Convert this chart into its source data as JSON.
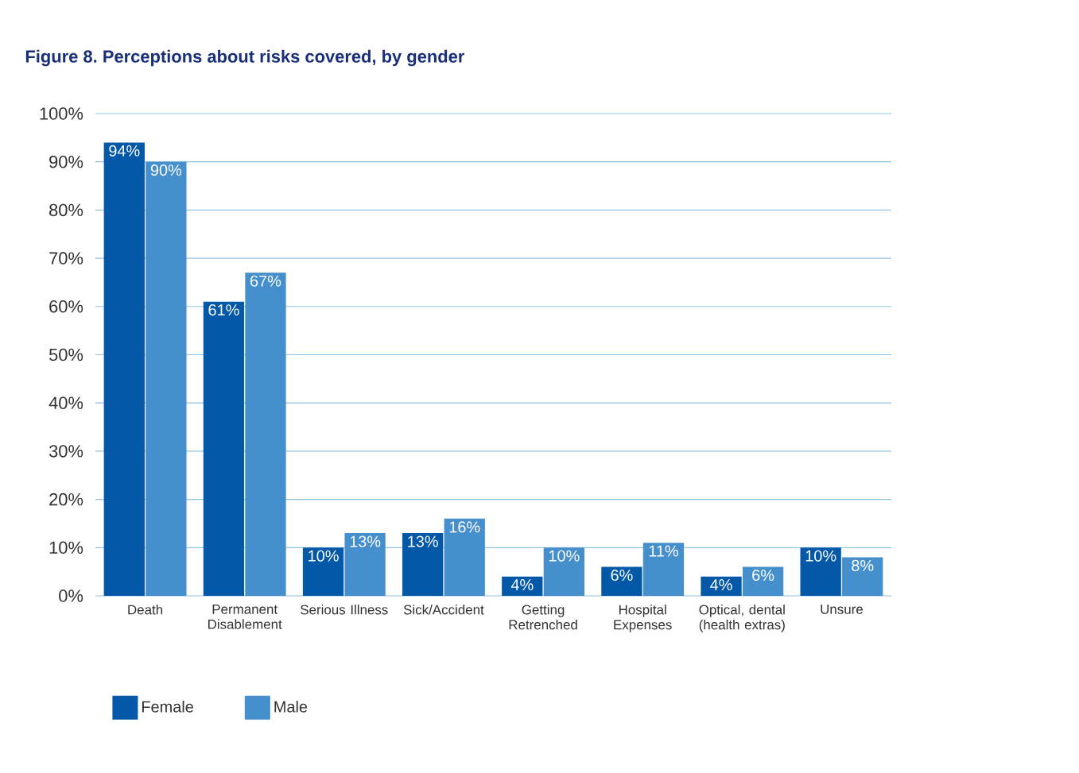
{
  "chart_data": {
    "type": "bar",
    "title": "Figure 8. Perceptions about risks covered, by gender",
    "categories": [
      "Death",
      "Permanent Disablement",
      "Serious Illness",
      "Sick/Accident",
      "Getting Retrenched",
      "Hospital Expenses",
      "Optical, dental (health extras)",
      "Unsure"
    ],
    "series": [
      {
        "name": "Female",
        "color": "#0358a8",
        "values": [
          94,
          61,
          10,
          13,
          4,
          6,
          4,
          10
        ],
        "value_labels": [
          "94%",
          "61%",
          "10%",
          "13%",
          "4%",
          "6%",
          "4%",
          "10%"
        ]
      },
      {
        "name": "Male",
        "color": "#468fcd",
        "values": [
          90,
          67,
          13,
          16,
          10,
          11,
          6,
          8
        ],
        "value_labels": [
          "90%",
          "67%",
          "13%",
          "16%",
          "10%",
          "11%",
          "6%",
          "8%"
        ]
      }
    ],
    "ylim": [
      0,
      100
    ],
    "yticks": [
      {
        "value": 0,
        "label": "0%"
      },
      {
        "value": 10,
        "label": "10%"
      },
      {
        "value": 20,
        "label": "20%"
      },
      {
        "value": 30,
        "label": "30%"
      },
      {
        "value": 40,
        "label": "40%"
      },
      {
        "value": 50,
        "label": "50%"
      },
      {
        "value": 60,
        "label": "60%"
      },
      {
        "value": 70,
        "label": "70%"
      },
      {
        "value": 80,
        "label": "80%"
      },
      {
        "value": 90,
        "label": "90%"
      },
      {
        "value": 100,
        "label": "100%"
      }
    ],
    "grid": "y",
    "legend": "bottom left"
  }
}
